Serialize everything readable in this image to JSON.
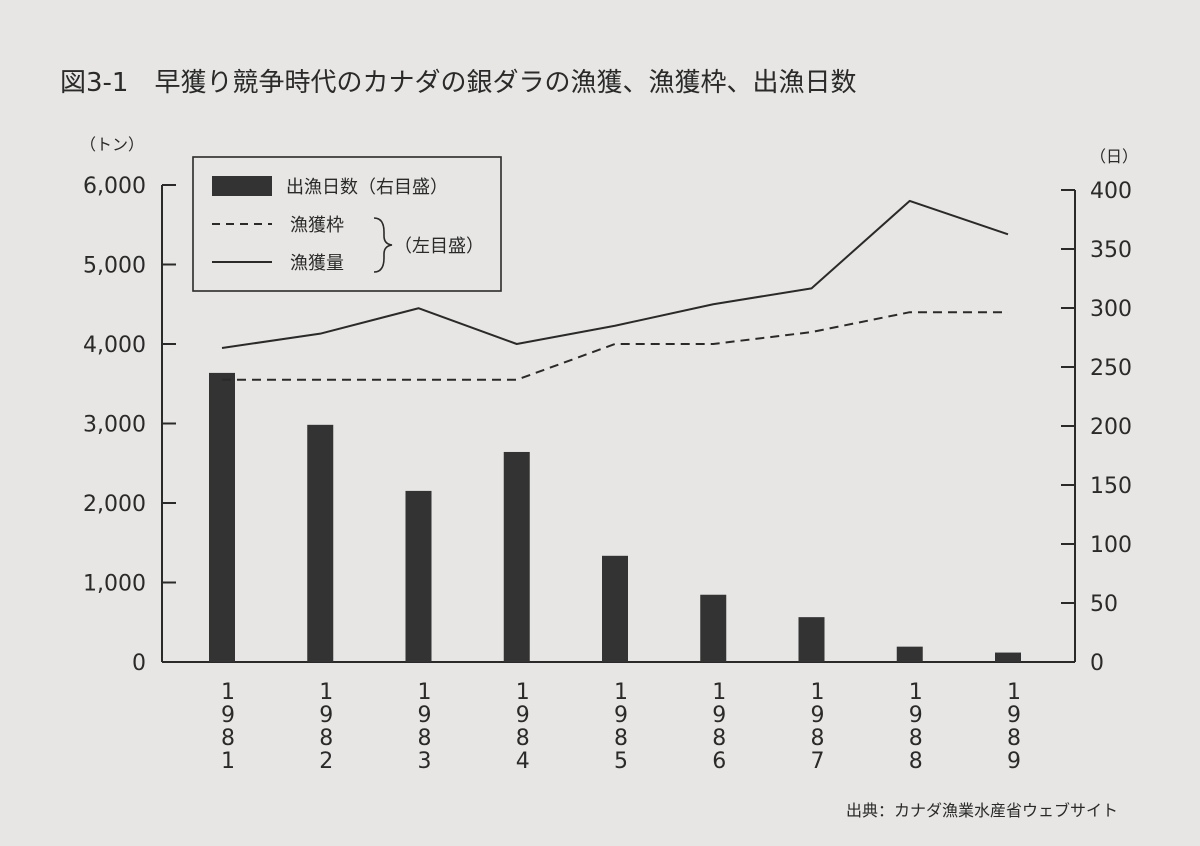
{
  "chart_data": {
    "type": "bar+line",
    "title": "図3-1　早獲り競争時代のカナダの銀ダラの漁獲、漁獲枠、出漁日数",
    "source": "出典：カナダ漁業水産省ウェブサイト",
    "left_axis": {
      "unit": "（トン）",
      "ylim": [
        0,
        6000
      ],
      "ticks": [
        "0",
        "1,000",
        "2,000",
        "3,000",
        "4,000",
        "5,000",
        "6,000"
      ]
    },
    "right_axis": {
      "unit": "（日）",
      "ylim": [
        0,
        400
      ],
      "ticks": [
        "0",
        "50",
        "100",
        "150",
        "200",
        "250",
        "300",
        "350",
        "400"
      ]
    },
    "categories": [
      "1981",
      "1982",
      "1983",
      "1984",
      "1985",
      "1986",
      "1987",
      "1988",
      "1989"
    ],
    "legend": {
      "bar_label": "出漁日数（右目盛）",
      "quota_label": "漁獲枠",
      "catch_label": "漁獲量",
      "group_label": "（左目盛）"
    },
    "series": [
      {
        "name": "出漁日数（右目盛）",
        "kind": "bar",
        "axis": "right",
        "values": [
          245,
          201,
          145,
          178,
          90,
          57,
          38,
          13,
          8
        ]
      },
      {
        "name": "漁獲枠",
        "kind": "dashed-line",
        "axis": "left",
        "values": [
          3550,
          3550,
          3550,
          3550,
          4000,
          4000,
          4150,
          4400,
          4400
        ]
      },
      {
        "name": "漁獲量",
        "kind": "line",
        "axis": "left",
        "values": [
          3950,
          4130,
          4450,
          4000,
          4230,
          4500,
          4700,
          5800,
          5380
        ]
      }
    ]
  }
}
